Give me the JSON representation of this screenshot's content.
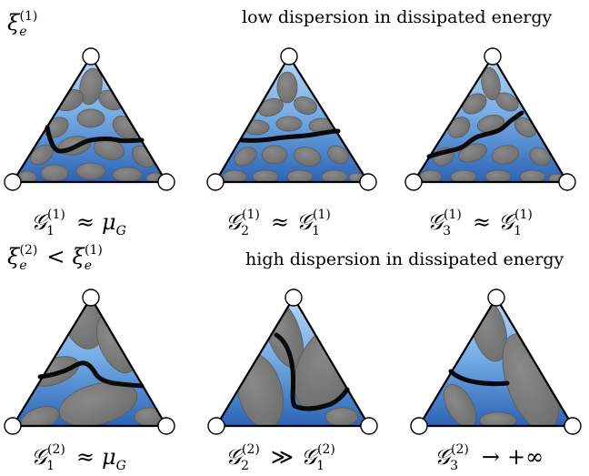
{
  "rows": [
    {
      "xi_label": {
        "sym": "ξ",
        "sub": "e",
        "sup": "(1)",
        "rel": "",
        "rhs_sym": "",
        "rhs_sub": "",
        "rhs_sup": ""
      },
      "heading": "low dispersion in dissipated energy",
      "elements": [
        {
          "caption": {
            "sub": "1",
            "sup": "(1)",
            "rel": "≈",
            "rhs_sym": "μ",
            "rhs_sub": "G",
            "rhs_sup": ""
          }
        },
        {
          "caption": {
            "sub": "2",
            "sup": "(1)",
            "rel": "≈",
            "rhs_sym": "𝒢",
            "rhs_sub": "1",
            "rhs_sup": "(1)"
          }
        },
        {
          "caption": {
            "sub": "3",
            "sup": "(1)",
            "rel": "≈",
            "rhs_sym": "𝒢",
            "rhs_sub": "1",
            "rhs_sup": "(1)"
          }
        }
      ]
    },
    {
      "xi_label": {
        "sym": "ξ",
        "sub": "e",
        "sup": "(2)",
        "rel": "<",
        "rhs_sym": "ξ",
        "rhs_sub": "e",
        "rhs_sup": "(1)"
      },
      "heading": "high dispersion in dissipated energy",
      "elements": [
        {
          "caption": {
            "sub": "1",
            "sup": "(2)",
            "rel": "≈",
            "rhs_sym": "μ",
            "rhs_sub": "G",
            "rhs_sup": ""
          }
        },
        {
          "caption": {
            "sub": "2",
            "sup": "(2)",
            "rel": "≫",
            "rhs_sym": "𝒢",
            "rhs_sub": "1",
            "rhs_sup": "(2)"
          }
        },
        {
          "caption": {
            "sub": "3",
            "sup": "(2)",
            "rel": "→",
            "rhs_sym": "+∞",
            "rhs_sub": "",
            "rhs_sup": ""
          }
        }
      ]
    }
  ],
  "g_symbol": "𝒢",
  "colors": {
    "matrix_light": "#9cc6ee",
    "matrix_dark": "#2f67b8",
    "inclusion": "#7e7e7e",
    "inclusion_edge": "#555555",
    "crack": "#0a0a0a",
    "edge": "#000000",
    "node_fill": "#ffffff"
  }
}
